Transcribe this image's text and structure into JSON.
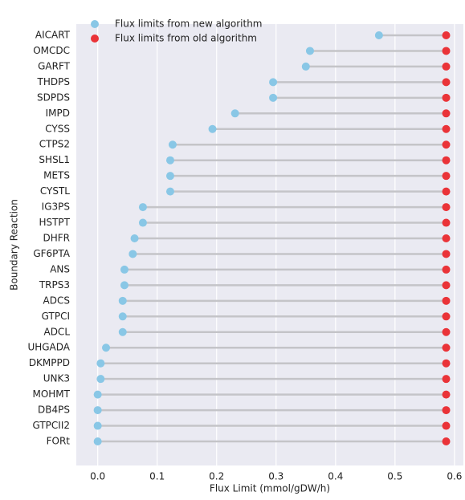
{
  "chart_data": {
    "type": "dumbbell",
    "xlabel": "Flux Limit (mmol/gDW/h)",
    "ylabel": "Boundary Reaction",
    "categories": [
      "AICART",
      "OMCDC",
      "GARFT",
      "THDPS",
      "SDPDS",
      "IMPD",
      "CYSS",
      "CTPS2",
      "SHSL1",
      "METS",
      "CYSTL",
      "IG3PS",
      "HSTPT",
      "DHFR",
      "GF6PTA",
      "ANS",
      "TRPS3",
      "ADCS",
      "GTPCI",
      "ADCL",
      "UHGADA",
      "DKMPPD",
      "UNK3",
      "MOHMT",
      "DB4PS",
      "GTPCII2",
      "FORt"
    ],
    "series": [
      {
        "name": "Flux limits from new algorithm",
        "color": "#89c7e6",
        "values": [
          0.473,
          0.357,
          0.35,
          0.295,
          0.295,
          0.231,
          0.193,
          0.126,
          0.122,
          0.122,
          0.122,
          0.076,
          0.076,
          0.062,
          0.059,
          0.045,
          0.045,
          0.042,
          0.042,
          0.042,
          0.014,
          0.005,
          0.005,
          0,
          0,
          0,
          0
        ]
      },
      {
        "name": "Flux limits from old algorithm",
        "color": "#ea3338",
        "values": [
          0.586,
          0.586,
          0.586,
          0.586,
          0.586,
          0.586,
          0.586,
          0.586,
          0.586,
          0.586,
          0.586,
          0.586,
          0.586,
          0.586,
          0.586,
          0.586,
          0.586,
          0.586,
          0.586,
          0.586,
          0.586,
          0.586,
          0.586,
          0.586,
          0.586,
          0.586,
          0.586
        ]
      }
    ],
    "connector_color": "#c4c4c8",
    "xlim": [
      -0.036,
      0.615
    ],
    "xticks": [
      {
        "value": 0,
        "label": "0.0"
      },
      0.1,
      0.2,
      0.3,
      0.4,
      0.5,
      0.6
    ],
    "grid": true,
    "legend": "upper left"
  }
}
